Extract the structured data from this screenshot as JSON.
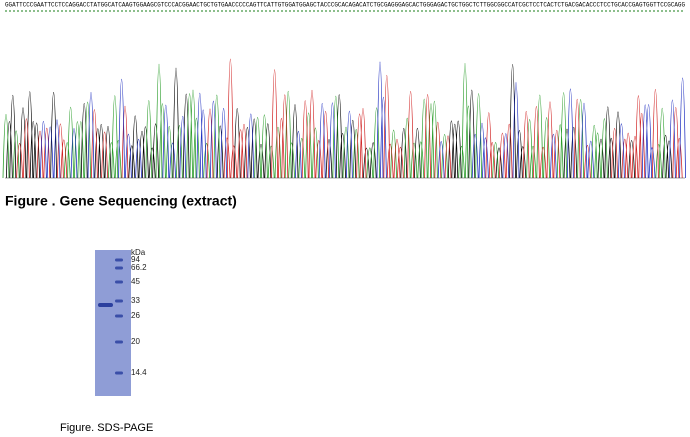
{
  "sequence": {
    "text": "GGATTCCCGAATTCCTCCAGGACCTATGGCATCAAGTGGAAGCGTCCCACGGAACTGCTGTGAACCCCCAGTTCATTGTGGATGGAGCTACCCGCACAGACATCTGCGAGGGAGCACTGGGAGACTGCTGGCTCTTGGCGGCCATCGCTCCTCACTCTGACGACACCCTCCTGCACCGAGTGGTTCCGCAGG",
    "caption": "Figure . Gene Sequencing (extract)"
  },
  "gel": {
    "markers": [
      "kDa",
      "94",
      "66.2",
      "45",
      "33",
      "26",
      "20",
      "14.4"
    ],
    "caption": "Figure. SDS-PAGE"
  }
}
